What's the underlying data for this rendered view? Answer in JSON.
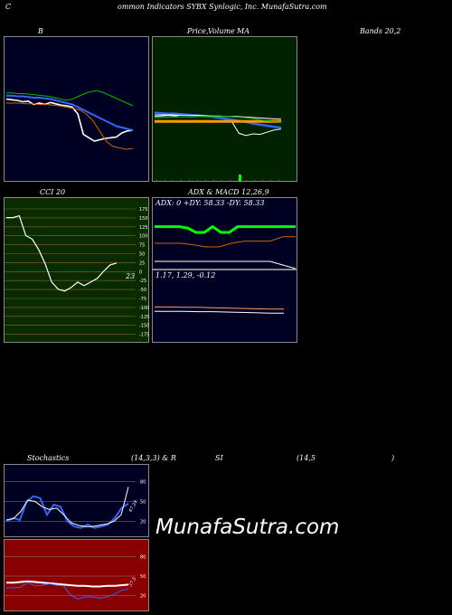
{
  "header": {
    "c": "C",
    "title": "ommon Indicators SYBX Synlogic, Inc. MunafaSutra.com"
  },
  "labels": {
    "b": "B",
    "price": "Price,",
    "volume": "Volume",
    "ma": "MA",
    "bands": "Bands 20,2",
    "cci": "CCI 20",
    "adx": "ADX  & MACD 12,26,9",
    "adx_values": "ADX: 0  +DY: 58.33 -DY: 58.33",
    "macd_values": "1.17,  1.29,  -0.12",
    "stoch": "Stochastics",
    "stoch_params": "(14,3,3) & R",
    "si": "SI",
    "rsi_params": "(14,5",
    "rsi_close": ")",
    "watermark": "MunafaSutra.com"
  },
  "colors": {
    "navy": "#000022",
    "green_bg": "#002200",
    "olive_bg": "#0a2a00",
    "red_bg": "#880000",
    "white": "#ffffff",
    "blue": "#3366ff",
    "green_line": "#00bb00",
    "orange": "#cc6600",
    "bright_green": "#00ff00"
  },
  "chart_data": [
    {
      "type": "line",
      "panel": "bollinger",
      "series": [
        {
          "color": "#ffffff",
          "values": [
            78,
            79,
            80,
            82,
            81,
            86,
            84,
            86,
            83,
            85,
            87,
            88,
            90,
            100,
            130,
            135,
            140,
            138,
            136,
            135,
            134,
            128,
            125,
            124
          ]
        },
        {
          "color": "#3366ff",
          "values": [
            73,
            73,
            74,
            74,
            75,
            76,
            76,
            77,
            78,
            80,
            82,
            84,
            86,
            90,
            94,
            98,
            102,
            106,
            110,
            114,
            118,
            120,
            122,
            124
          ]
        },
        {
          "color": "#00bb00",
          "values": [
            69,
            69,
            70,
            70,
            71,
            72,
            73,
            74,
            76,
            78,
            80,
            78,
            74,
            70,
            67,
            66,
            68,
            72,
            76,
            80,
            84,
            88
          ]
        },
        {
          "color": "#cc6600",
          "values": [
            84,
            84,
            84,
            85,
            85,
            86,
            86,
            87,
            88,
            90,
            92,
            94,
            100,
            110,
            125,
            140,
            148,
            150,
            152,
            151
          ]
        }
      ]
    },
    {
      "type": "line",
      "panel": "price_ma",
      "series": [
        {
          "color": "#ffffff",
          "values": [
            113,
            112,
            111,
            112,
            110,
            111,
            110,
            112,
            113,
            115,
            118,
            123,
            144,
            148,
            145,
            146,
            142,
            138,
            136
          ]
        },
        {
          "color": "#3366ff",
          "values": [
            106,
            107,
            108,
            108,
            109,
            110,
            111,
            112,
            113,
            115,
            117,
            119,
            121,
            123,
            126,
            128,
            130,
            132,
            134
          ]
        },
        {
          "color": "#ff9900",
          "values": [
            122,
            122,
            122,
            122,
            122,
            122,
            122,
            122,
            122,
            122,
            122,
            122,
            122,
            122,
            122
          ]
        },
        {
          "color": "#ffffff",
          "values": [
            110,
            110,
            110,
            111,
            111,
            111,
            112,
            112,
            113,
            113,
            114,
            115,
            116,
            117,
            118
          ]
        },
        {
          "color": "#00bb00",
          "values": [
            115,
            115,
            114,
            114,
            114,
            113,
            113,
            113,
            113,
            114,
            115,
            117,
            120,
            122,
            124
          ]
        }
      ]
    },
    {
      "type": "line",
      "panel": "cci",
      "ticks": [
        "175",
        "150",
        "125",
        "100",
        "75",
        "50",
        "25",
        "0",
        "-25",
        "-50",
        "-75",
        "-100",
        "-125",
        "-150",
        "-175"
      ],
      "value_label": "23",
      "series": [
        {
          "color": "#ffffff",
          "values": [
            150,
            150,
            155,
            100,
            90,
            60,
            20,
            -30,
            -50,
            -55,
            -45,
            -30,
            -40,
            -30,
            -20,
            0,
            18,
            23
          ]
        }
      ]
    },
    {
      "type": "line",
      "panel": "adx",
      "series": [
        {
          "color": "#00ff00",
          "values": [
            58,
            58,
            58,
            58,
            56,
            50,
            50,
            58,
            50,
            50,
            58,
            58,
            58,
            58,
            58,
            58,
            58,
            58
          ]
        },
        {
          "color": "#cc6600",
          "values": [
            35,
            35,
            35,
            33,
            30,
            30,
            35,
            38,
            38,
            38,
            44,
            44
          ]
        },
        {
          "color": "#ffffff",
          "values": [
            10,
            10,
            10,
            10,
            10,
            10,
            10,
            10,
            10,
            10,
            5,
            0
          ]
        }
      ]
    },
    {
      "type": "line",
      "panel": "macd",
      "series": [
        {
          "color": "#ffffff",
          "values": [
            1.17,
            1.17,
            1.17,
            1.16,
            1.16,
            1.15,
            1.14,
            1.13,
            1.12,
            1.12
          ]
        },
        {
          "color": "#ff9966",
          "values": [
            1.29,
            1.29,
            1.28,
            1.28,
            1.27,
            1.26,
            1.25,
            1.24,
            1.23,
            1.23
          ]
        }
      ]
    },
    {
      "type": "line",
      "panel": "stochastics",
      "ticks": [
        "80",
        "50",
        "20"
      ],
      "value_label": "47.24",
      "series": [
        {
          "color": "#3366ff",
          "values": [
            20,
            25,
            22,
            50,
            58,
            55,
            30,
            45,
            42,
            20,
            12,
            10,
            15,
            10,
            12,
            15,
            25,
            40,
            47
          ]
        },
        {
          "color": "#ffffff",
          "values": [
            22,
            24,
            35,
            52,
            50,
            42,
            38,
            40,
            30,
            18,
            14,
            12,
            12,
            14,
            16,
            20,
            30,
            72
          ]
        }
      ]
    },
    {
      "type": "line",
      "panel": "rsi",
      "ticks": [
        "80",
        "50",
        "20"
      ],
      "value_label": "37.5",
      "series": [
        {
          "color": "#ffffff",
          "values": [
            40,
            40,
            41,
            42,
            41,
            40,
            39,
            38,
            37,
            36,
            35,
            35,
            34,
            34,
            35,
            35,
            36,
            37
          ]
        },
        {
          "color": "#3366ff",
          "values": [
            32,
            32,
            33,
            40,
            35,
            36,
            38,
            36,
            35,
            20,
            15,
            18,
            18,
            16,
            18,
            22,
            28,
            30
          ]
        }
      ]
    }
  ]
}
